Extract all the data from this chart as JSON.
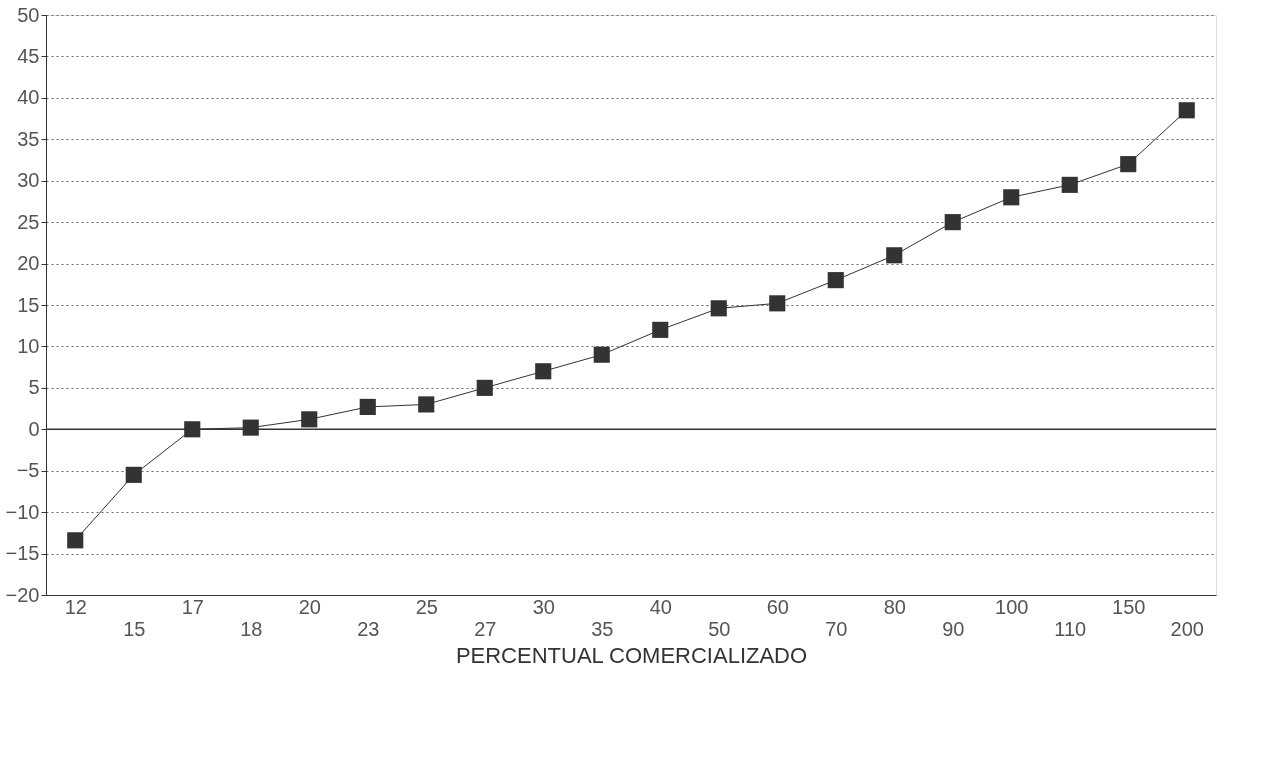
{
  "chart_data": {
    "type": "line",
    "xlabel": "PERCENTUAL COMERCIALIZADO",
    "categories": [
      "12",
      "15",
      "17",
      "18",
      "20",
      "23",
      "25",
      "27",
      "30",
      "35",
      "40",
      "50",
      "60",
      "70",
      "80",
      "90",
      "100",
      "110",
      "150",
      "200"
    ],
    "series": [
      {
        "color": "#333333",
        "values": [
          -13.4,
          -5.5,
          0,
          0.2,
          1.2,
          2.7,
          3,
          5,
          7,
          9,
          12,
          14.6,
          15.2,
          18,
          21,
          25,
          28,
          29.5,
          32,
          38.5
        ]
      }
    ],
    "ylim": [
      -20,
      50
    ],
    "yticks": [
      -20,
      -15,
      -10,
      -5,
      0,
      5,
      10,
      15,
      20,
      25,
      30,
      35,
      40,
      45,
      50
    ],
    "ref_lines": [
      {
        "axis": "y",
        "value": 0,
        "color": "#333333"
      }
    ],
    "grid": "y",
    "marker": "square",
    "line_style": "solid"
  }
}
